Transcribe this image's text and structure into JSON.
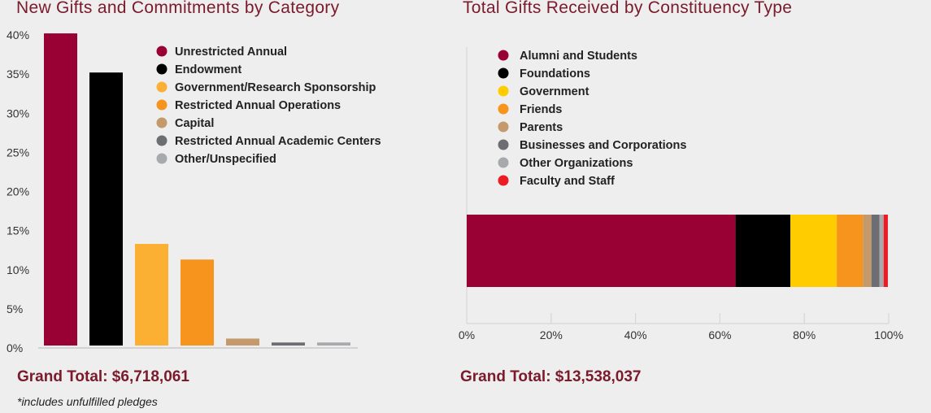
{
  "chart_data": [
    {
      "type": "bar",
      "title": "New Gifts and Commitments by Category",
      "categories": [
        "Unrestricted Annual",
        "Endowment",
        "Government/Research Sponsorship",
        "Restricted Annual Operations",
        "Capital",
        "Restricted Annual Academic Centers",
        "Other/Unspecified"
      ],
      "values": [
        40.2,
        35.2,
        13.3,
        11.3,
        1.2,
        0.7,
        0.7
      ],
      "colors": [
        "#990033",
        "#000000",
        "#fbb034",
        "#f7941d",
        "#c49a6c",
        "#6d6e71",
        "#a7a9ac"
      ],
      "yticks": [
        "0%",
        "5%",
        "10%",
        "15%",
        "20%",
        "25%",
        "30%",
        "35%",
        "40%"
      ],
      "ylim": [
        0,
        40
      ],
      "grid": false,
      "legend": "top-right",
      "grand_total": "Grand Total: $6,718,061",
      "footnote": "*includes unfulfilled pledges"
    },
    {
      "type": "bar",
      "orientation": "horizontal-stacked",
      "title": "Total Gifts Received by Constituency Type",
      "series": [
        {
          "name": "Alumni and Students",
          "value": 63.7,
          "color": "#990033"
        },
        {
          "name": "Foundations",
          "value": 13.0,
          "color": "#000000"
        },
        {
          "name": "Government",
          "value": 11.0,
          "color": "#ffcc00"
        },
        {
          "name": "Friends",
          "value": 6.2,
          "color": "#f7941d"
        },
        {
          "name": "Parents",
          "value": 2.0,
          "color": "#c49a6c"
        },
        {
          "name": "Businesses and Corporations",
          "value": 1.9,
          "color": "#6d6e71"
        },
        {
          "name": "Other Organizations",
          "value": 1.0,
          "color": "#a7a9ac"
        },
        {
          "name": "Faculty and Staff",
          "value": 1.0,
          "color": "#ed1c24"
        }
      ],
      "xticks": [
        "0%",
        "20%",
        "40%",
        "60%",
        "80%",
        "100%"
      ],
      "xlim": [
        0,
        100
      ],
      "grid": false,
      "legend": "top-left",
      "grand_total": "Grand Total: $13,538,037"
    }
  ]
}
